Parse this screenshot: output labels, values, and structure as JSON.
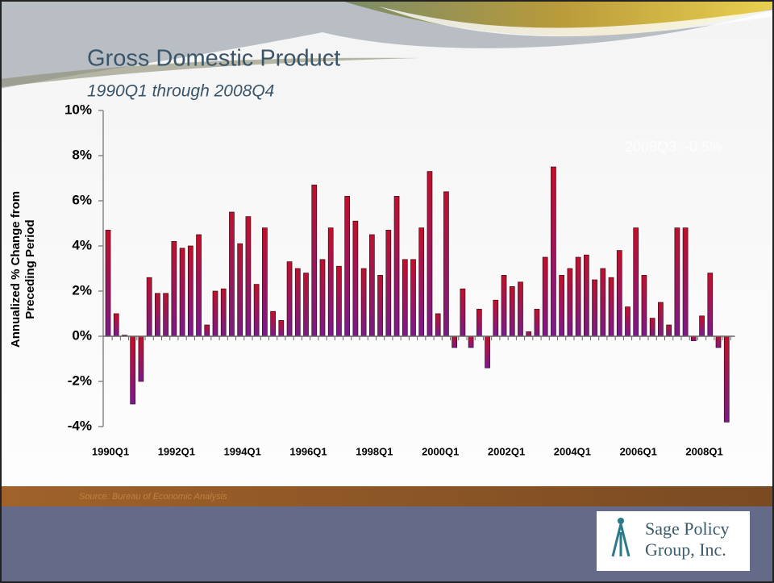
{
  "chart_data": {
    "type": "bar",
    "title": "Gross Domestic Product",
    "subtitle": "1990Q1 through 2008Q4",
    "ylabel": [
      "Annualized % Change from",
      "Preceding Period"
    ],
    "annotation": "2008Q3:  -0.5%",
    "source": "Source:   Bureau of Economic Analysis",
    "logo": [
      "Sage Policy",
      "Group, Inc."
    ],
    "color": [
      "#c0102a",
      "#7a1a8a"
    ],
    "categories": [
      "1990Q1",
      null,
      null,
      null,
      null,
      null,
      null,
      null,
      "1992Q1",
      null,
      null,
      null,
      null,
      null,
      null,
      null,
      "1994Q1",
      null,
      null,
      null,
      null,
      null,
      null,
      null,
      "1996Q1",
      null,
      null,
      null,
      null,
      null,
      null,
      null,
      "1998Q1",
      null,
      null,
      null,
      null,
      null,
      null,
      null,
      "2000Q1",
      null,
      null,
      null,
      null,
      null,
      null,
      null,
      "2002Q1",
      null,
      null,
      null,
      null,
      null,
      null,
      null,
      "2004Q1",
      null,
      null,
      null,
      null,
      null,
      null,
      null,
      "2006Q1",
      null,
      null,
      null,
      null,
      null,
      null,
      null,
      "2008Q1",
      null,
      null,
      null
    ],
    "values": [
      4.7,
      1.0,
      0.05,
      -3.0,
      -2.0,
      2.6,
      1.9,
      1.9,
      4.2,
      3.9,
      4.0,
      4.5,
      0.5,
      2.0,
      2.1,
      5.5,
      4.1,
      5.3,
      2.3,
      4.8,
      1.1,
      0.7,
      3.3,
      3.0,
      2.8,
      6.7,
      3.4,
      4.8,
      3.1,
      6.2,
      5.1,
      3.0,
      4.5,
      2.7,
      4.7,
      6.2,
      3.4,
      3.4,
      4.8,
      7.3,
      1.0,
      6.4,
      -0.5,
      2.1,
      -0.5,
      1.2,
      -1.4,
      1.6,
      2.7,
      2.2,
      2.4,
      0.2,
      1.2,
      3.5,
      7.5,
      2.7,
      3.0,
      3.5,
      3.6,
      2.5,
      3.0,
      2.6,
      3.8,
      1.3,
      4.8,
      2.7,
      0.8,
      1.5,
      0.5,
      4.8,
      4.8,
      -0.2,
      0.9,
      2.8,
      -0.5,
      -3.8
    ],
    "ylim": [
      -4,
      10
    ],
    "yticks": [
      {
        "value": -4,
        "label": "-4%"
      },
      {
        "value": -2,
        "label": "-2%"
      },
      {
        "value": 0,
        "label": "0%"
      },
      {
        "value": 2,
        "label": "2%"
      },
      {
        "value": 4,
        "label": "4%"
      },
      {
        "value": 6,
        "label": "6%"
      },
      {
        "value": 8,
        "label": "8%"
      },
      {
        "value": 10,
        "label": "10%"
      }
    ]
  }
}
